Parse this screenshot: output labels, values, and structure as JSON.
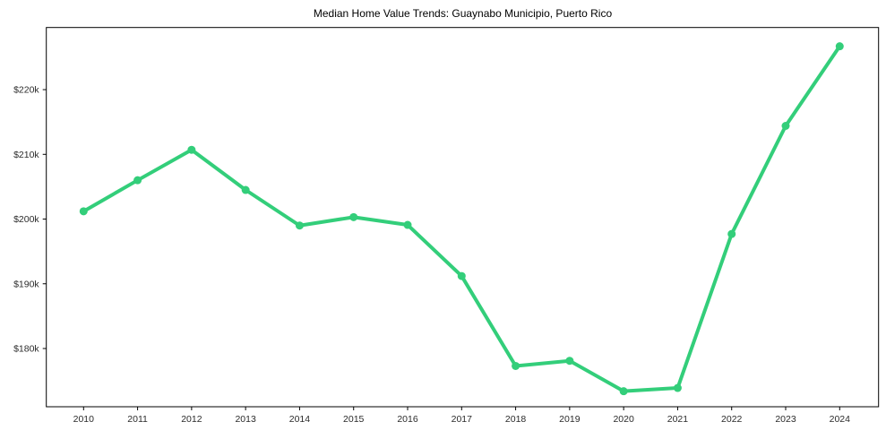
{
  "chart_data": {
    "type": "line",
    "title": "Median Home Value Trends: Guaynabo Municipio, Puerto Rico",
    "xlabel": "",
    "ylabel": "",
    "x": [
      2010,
      2011,
      2012,
      2013,
      2014,
      2015,
      2016,
      2017,
      2018,
      2019,
      2020,
      2021,
      2022,
      2023,
      2024
    ],
    "series": [
      {
        "values_usd": [
          201200,
          206000,
          210700,
          204500,
          199000,
          200300,
          199100,
          191200,
          177300,
          178100,
          173400,
          173900,
          197700,
          214400,
          226700
        ]
      }
    ],
    "x_tick_labels": [
      "2010",
      "2011",
      "2012",
      "2013",
      "2014",
      "2015",
      "2016",
      "2017",
      "2018",
      "2019",
      "2020",
      "2021",
      "2022",
      "2023",
      "2024"
    ],
    "y_tick_labels": [
      "$180k",
      "$190k",
      "$200k",
      "$210k",
      "$220k"
    ],
    "y_tick_values": [
      180000,
      190000,
      200000,
      210000,
      220000
    ],
    "xlim": [
      2009.31,
      2024.72
    ],
    "ylim": [
      171000,
      229600
    ],
    "grid": false,
    "legend": false,
    "line_color": "#33ce7a",
    "marker": "circle",
    "axis_color": "#000000",
    "tick_label_color": "#2b2b2b",
    "background_color": "#ffffff"
  }
}
